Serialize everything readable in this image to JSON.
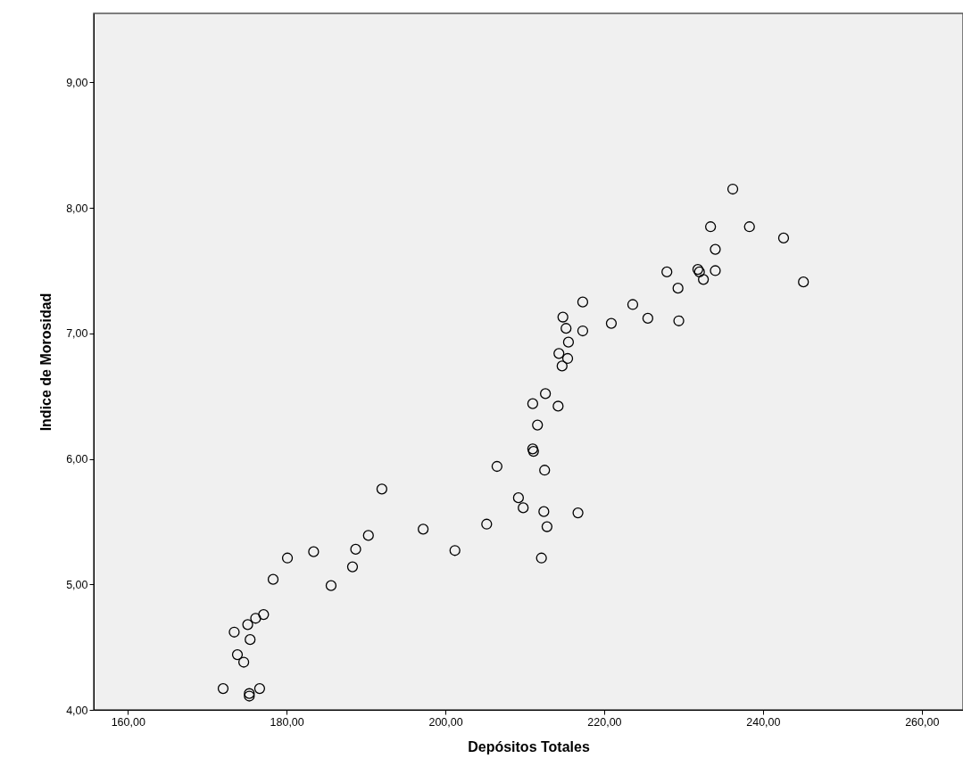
{
  "chart_data": {
    "type": "scatter",
    "xlabel": "Depósitos Totales",
    "ylabel": "Indice de Morosidad",
    "marker": "circle",
    "grid": false,
    "xlim": [
      155.7,
      265.2
    ],
    "ylim": [
      4,
      9.55
    ],
    "xticks": [
      {
        "value": 160,
        "label": "160,00"
      },
      {
        "value": 180,
        "label": "180,00"
      },
      {
        "value": 200,
        "label": "200,00"
      },
      {
        "value": 220,
        "label": "220,00"
      },
      {
        "value": 240,
        "label": "240,00"
      },
      {
        "value": 260,
        "label": "260,00"
      }
    ],
    "yticks": [
      {
        "value": 4,
        "label": "4,00"
      },
      {
        "value": 5,
        "label": "5,00"
      },
      {
        "value": 6,
        "label": "6,00"
      },
      {
        "value": 7,
        "label": "7,00"
      },
      {
        "value": 8,
        "label": "8,00"
      },
      {
        "value": 9,
        "label": "9,00"
      }
    ],
    "series": [
      {
        "color": "#000000",
        "x": [
          172.0,
          173.4,
          173.8,
          174.6,
          175.1,
          175.3,
          175.3,
          175.4,
          176.1,
          176.6,
          177.1,
          178.3,
          180.1,
          183.4,
          185.6,
          188.3,
          188.7,
          190.3,
          192.0,
          197.2,
          201.2,
          205.2,
          206.5,
          209.2,
          209.8,
          211.0,
          211.0,
          211.1,
          211.6,
          212.1,
          212.4,
          212.5,
          212.6,
          212.8,
          214.2,
          214.3,
          214.7,
          214.8,
          215.2,
          215.4,
          215.5,
          216.7,
          217.3,
          217.3,
          220.9,
          223.6,
          225.5,
          227.9,
          229.3,
          229.4,
          231.8,
          232.0,
          232.5,
          233.4,
          234.0,
          234.0,
          236.2,
          238.3,
          242.6,
          245.1
        ],
        "values": [
          4.17,
          4.62,
          4.44,
          4.38,
          4.68,
          4.13,
          4.11,
          4.56,
          4.73,
          4.17,
          4.76,
          5.04,
          5.21,
          5.26,
          4.99,
          5.14,
          5.28,
          5.39,
          5.76,
          5.44,
          5.27,
          5.48,
          5.94,
          5.69,
          5.61,
          6.44,
          6.08,
          6.06,
          6.27,
          5.21,
          5.58,
          5.91,
          6.52,
          5.46,
          6.42,
          6.84,
          6.74,
          7.13,
          7.04,
          6.8,
          6.93,
          5.57,
          7.25,
          7.02,
          7.08,
          7.23,
          7.12,
          7.49,
          7.36,
          7.1,
          7.51,
          7.49,
          7.43,
          7.85,
          7.67,
          7.5,
          8.15,
          7.85,
          7.76,
          7.41
        ]
      }
    ]
  }
}
